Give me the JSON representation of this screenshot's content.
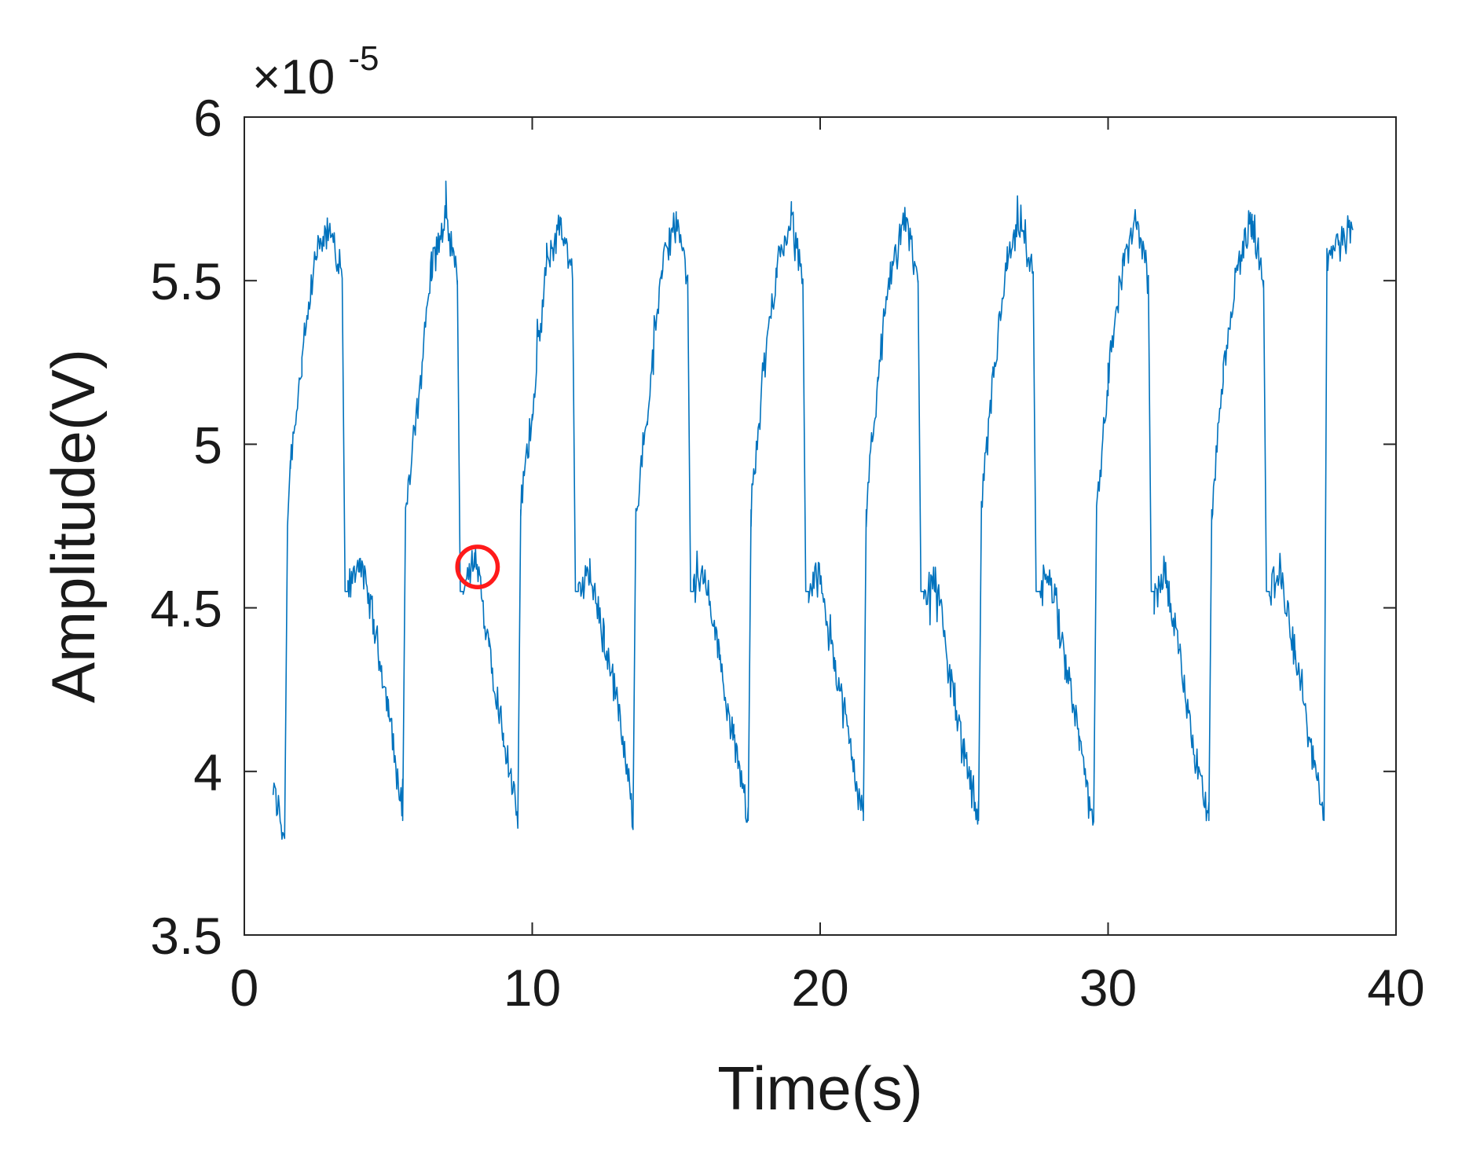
{
  "chart_data": {
    "type": "line",
    "title": "",
    "xlabel": "Time(s)",
    "ylabel": "Amplitude(V)",
    "y_multiplier_label": "×10",
    "y_multiplier_exponent": "-5",
    "xlim": [
      0,
      40
    ],
    "ylim": [
      3.5,
      6
    ],
    "x_ticks": [
      0,
      10,
      20,
      30,
      40
    ],
    "y_ticks": [
      3.5,
      4,
      4.5,
      5,
      5.5,
      6
    ],
    "x_tick_labels": [
      "0",
      "10",
      "20",
      "30",
      "40"
    ],
    "y_tick_labels": [
      "3.5",
      "4",
      "4.5",
      "5",
      "5.5",
      "6"
    ],
    "grid": false,
    "colors": {
      "line": "#0072bd",
      "annotation": "#ff1a1a",
      "axes": "#262626"
    },
    "series": [
      {
        "period": 4.0,
        "x": [
          1.0,
          1.4,
          1.5,
          1.6,
          2.0,
          2.5,
          3.0,
          3.4,
          3.5,
          3.6,
          4.0,
          4.5,
          5.0,
          5.5,
          5.5,
          5.6,
          6.0,
          6.5,
          7.0,
          7.4,
          7.5,
          7.6,
          8.0,
          8.5,
          9.0,
          9.5,
          9.5,
          9.6,
          10.0,
          10.5,
          11.0,
          11.4,
          11.5,
          11.6,
          12.0,
          12.5,
          13.0,
          13.5,
          13.5,
          13.6,
          14.0,
          14.5,
          15.0,
          15.4,
          15.5,
          15.6,
          16.0,
          16.5,
          17.0,
          17.5,
          17.5,
          17.6,
          18.0,
          18.5,
          19.0,
          19.4,
          19.5,
          19.6,
          20.0,
          20.5,
          21.0,
          21.5,
          21.5,
          21.6,
          22.0,
          22.5,
          23.0,
          23.4,
          23.5,
          23.6,
          24.0,
          24.5,
          25.0,
          25.5,
          25.5,
          25.6,
          26.0,
          26.5,
          27.0,
          27.4,
          27.5,
          27.6,
          28.0,
          28.5,
          29.0,
          29.5,
          29.5,
          29.6,
          30.0,
          30.5,
          31.0,
          31.4,
          31.5,
          31.6,
          32.0,
          32.5,
          33.0,
          33.5,
          33.5,
          33.6,
          34.0,
          34.5,
          35.0,
          35.4,
          35.5,
          35.6,
          36.0,
          36.5,
          37.0,
          37.5,
          37.5,
          37.6,
          38.0,
          38.5
        ],
        "y": [
          3.95,
          3.8,
          4.75,
          4.95,
          5.25,
          5.58,
          5.66,
          5.5,
          4.55,
          4.55,
          4.65,
          4.45,
          4.2,
          3.85,
          3.85,
          4.8,
          5.1,
          5.55,
          5.68,
          5.5,
          4.55,
          4.55,
          4.65,
          4.4,
          4.1,
          3.85,
          3.85,
          4.8,
          5.1,
          5.55,
          5.68,
          5.5,
          4.55,
          4.55,
          4.6,
          4.4,
          4.2,
          3.85,
          3.85,
          4.8,
          5.1,
          5.55,
          5.68,
          5.5,
          4.55,
          4.55,
          4.6,
          4.35,
          4.1,
          3.85,
          3.85,
          4.8,
          5.2,
          5.55,
          5.68,
          5.5,
          4.55,
          4.55,
          4.6,
          4.35,
          4.1,
          3.85,
          3.85,
          4.8,
          5.2,
          5.55,
          5.68,
          5.5,
          4.55,
          4.55,
          4.6,
          4.3,
          4.05,
          3.85,
          3.85,
          4.8,
          5.2,
          5.55,
          5.68,
          5.5,
          4.55,
          4.55,
          4.6,
          4.35,
          4.1,
          3.85,
          3.85,
          4.8,
          5.2,
          5.55,
          5.68,
          5.5,
          4.55,
          4.55,
          4.6,
          4.35,
          4.05,
          3.85,
          3.85,
          4.8,
          5.2,
          5.55,
          5.68,
          5.5,
          4.55,
          4.55,
          4.6,
          4.35,
          4.1,
          3.85,
          3.85,
          5.55,
          5.62,
          5.65
        ]
      }
    ],
    "annotations": [
      {
        "shape": "circle",
        "x": 8.1,
        "y": 4.625,
        "radius_x": 1.4,
        "color": "#ff1a1a"
      }
    ]
  }
}
